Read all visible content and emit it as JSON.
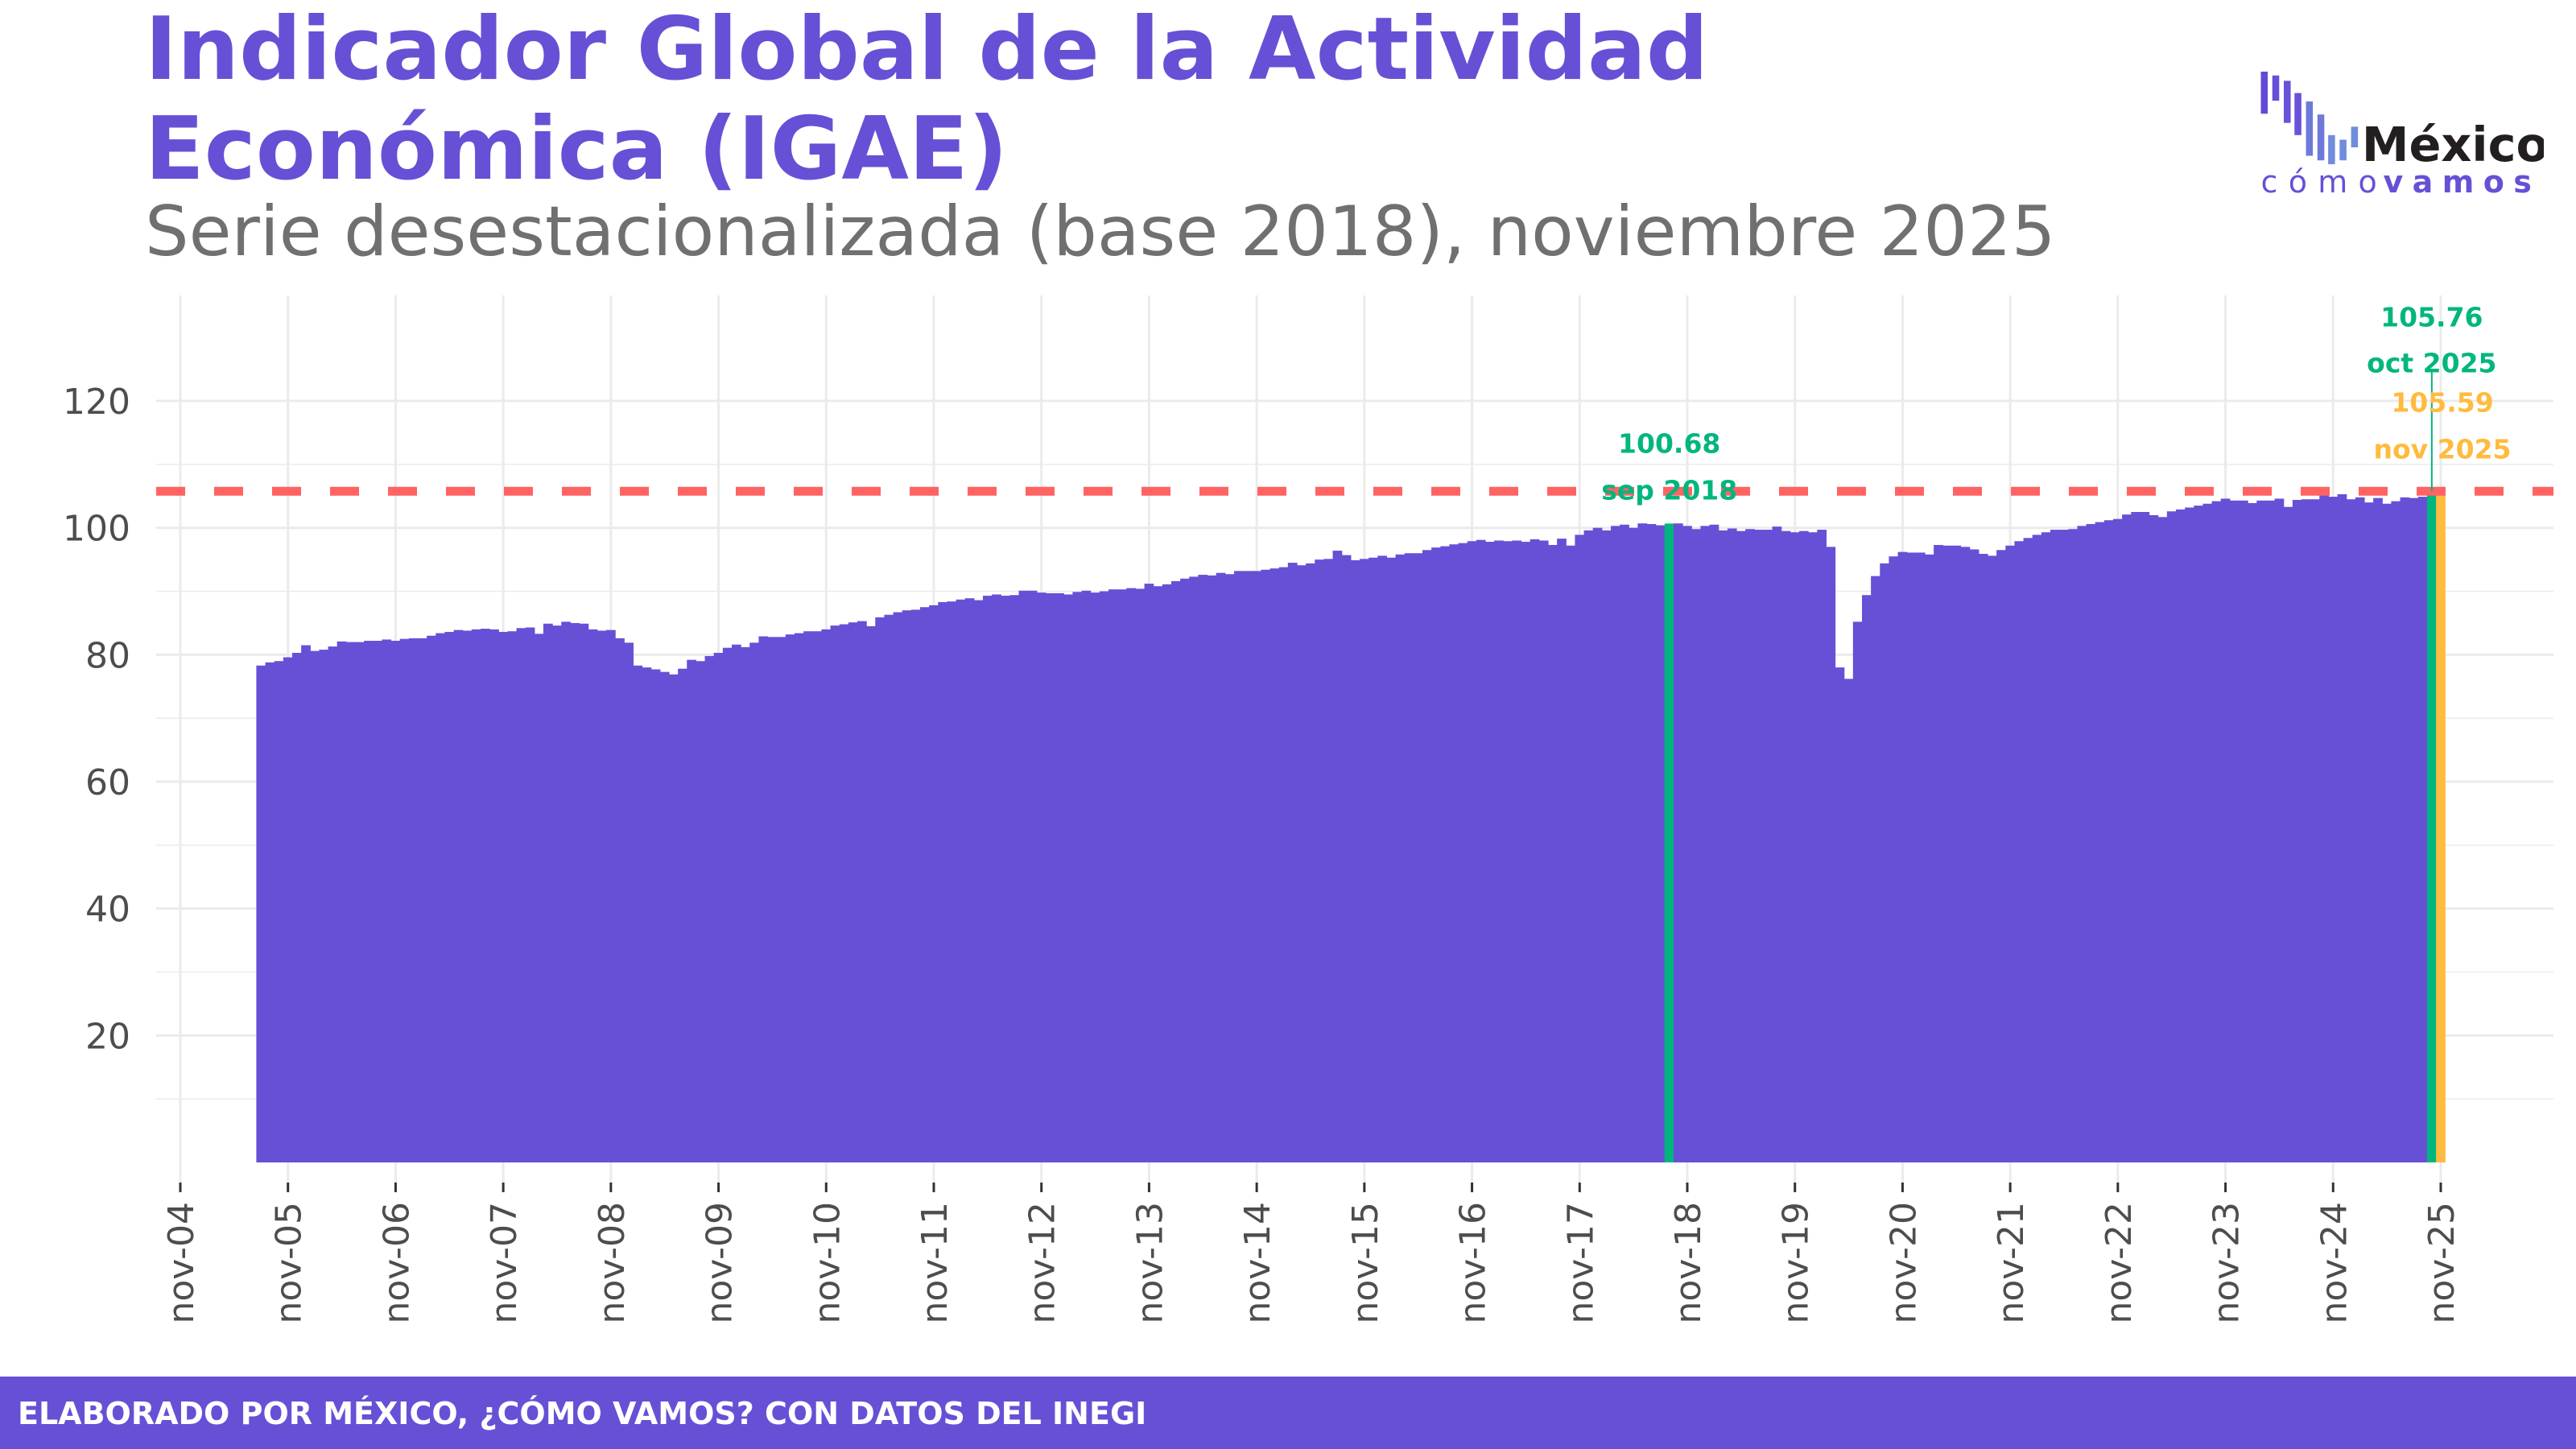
{
  "header": {
    "title_line1": "Indicador Global de la Actividad",
    "title_line2": "Económica (IGAE)",
    "subtitle": "Serie desestacionalizada (base 2018), noviembre 2025"
  },
  "logo": {
    "word1": "México",
    "word2a": "cómo",
    "word2b": "vamos"
  },
  "footer": {
    "text": "ELABORADO POR MÉXICO, ¿CÓMO VAMOS? CON DATOS DEL INEGI"
  },
  "colors": {
    "bars": "#6750D6",
    "highlight_sep2018": "#00B67E",
    "highlight_oct2025": "#00B67E",
    "highlight_nov2025": "#FFBB3F",
    "reference_line": "#FF6363",
    "grid": "#EBEBEB"
  },
  "chart_data": {
    "type": "bar",
    "title": "Indicador Global de la Actividad Económica (IGAE)",
    "subtitle": "Serie desestacionalizada (base 2018), noviembre 2025",
    "xlabel": "",
    "ylabel": "",
    "start": "2005-08",
    "end": "2025-11",
    "frequency": "monthly",
    "ylim": [
      0,
      135
    ],
    "yticks": [
      20,
      40,
      60,
      80,
      100,
      120
    ],
    "xticks": [
      "nov-04",
      "nov-05",
      "nov-06",
      "nov-07",
      "nov-08",
      "nov-09",
      "nov-10",
      "nov-11",
      "nov-12",
      "nov-13",
      "nov-14",
      "nov-15",
      "nov-16",
      "nov-17",
      "nov-18",
      "nov-19",
      "nov-20",
      "nov-21",
      "nov-22",
      "nov-23",
      "nov-24",
      "nov-25"
    ],
    "grid": true,
    "reference_line": {
      "value": 105.76,
      "style": "dashed"
    },
    "values": [
      78.3,
      78.8,
      79.0,
      79.6,
      80.3,
      81.5,
      80.6,
      80.8,
      81.3,
      82.1,
      82.0,
      82.0,
      82.2,
      82.2,
      82.4,
      82.2,
      82.5,
      82.6,
      82.6,
      83.0,
      83.4,
      83.6,
      83.9,
      83.8,
      84.0,
      84.1,
      84.0,
      83.6,
      83.7,
      84.2,
      84.3,
      83.3,
      84.9,
      84.6,
      85.2,
      85.0,
      84.9,
      84.0,
      83.8,
      83.9,
      82.6,
      81.9,
      78.3,
      78.0,
      77.7,
      77.3,
      76.9,
      77.8,
      79.2,
      79.0,
      79.8,
      80.3,
      81.1,
      81.6,
      81.2,
      81.9,
      82.9,
      82.8,
      82.8,
      83.2,
      83.4,
      83.7,
      83.7,
      84.0,
      84.6,
      84.8,
      85.1,
      85.3,
      84.5,
      85.9,
      86.3,
      86.7,
      87.0,
      87.1,
      87.5,
      87.8,
      88.3,
      88.4,
      88.7,
      88.9,
      88.6,
      89.3,
      89.5,
      89.3,
      89.4,
      90.1,
      90.1,
      89.8,
      89.7,
      89.7,
      89.5,
      89.9,
      90.1,
      89.8,
      90.0,
      90.3,
      90.3,
      90.5,
      90.4,
      91.2,
      90.8,
      91.1,
      91.6,
      92.0,
      92.3,
      92.6,
      92.5,
      92.9,
      92.7,
      93.2,
      93.2,
      93.2,
      93.4,
      93.6,
      93.8,
      94.5,
      94.1,
      94.4,
      95.0,
      95.1,
      96.4,
      95.7,
      94.9,
      95.1,
      95.3,
      95.6,
      95.3,
      95.8,
      96.0,
      96.0,
      96.5,
      96.9,
      97.1,
      97.4,
      97.6,
      97.9,
      98.1,
      97.8,
      98.0,
      97.9,
      98.0,
      97.8,
      98.2,
      98.0,
      97.3,
      98.3,
      97.2,
      98.9,
      99.6,
      100.0,
      99.6,
      100.3,
      100.5,
      100.0,
      100.7,
      100.6,
      100.4,
      100.68,
      100.7,
      100.3,
      99.8,
      100.3,
      100.5,
      99.6,
      99.9,
      99.5,
      99.8,
      99.7,
      99.7,
      100.2,
      99.5,
      99.3,
      99.5,
      99.3,
      99.7,
      97.0,
      78.0,
      76.2,
      85.2,
      89.4,
      92.4,
      94.4,
      95.5,
      96.2,
      96.1,
      96.1,
      95.8,
      97.3,
      97.2,
      97.2,
      97.0,
      96.6,
      95.9,
      95.6,
      96.5,
      97.2,
      97.9,
      98.4,
      98.9,
      99.3,
      99.7,
      99.7,
      99.8,
      100.3,
      100.6,
      100.9,
      101.2,
      101.4,
      102.1,
      102.5,
      102.5,
      102.0,
      101.7,
      102.6,
      102.9,
      103.2,
      103.5,
      103.8,
      104.2,
      104.6,
      104.3,
      104.3,
      103.9,
      104.3,
      104.3,
      104.6,
      103.3,
      104.4,
      104.5,
      104.5,
      105.5,
      104.9,
      105.3,
      104.5,
      104.8,
      104.0,
      104.7,
      103.8,
      104.2,
      104.8,
      104.7,
      104.9,
      105.76,
      105.59
    ],
    "annotations": [
      {
        "period": "2018-09",
        "value_label": "100.68",
        "date_label": "sep 2018",
        "color": "#00B67E"
      },
      {
        "period": "2025-10",
        "value_label": "105.76",
        "date_label": "oct 2025",
        "color": "#00B67E"
      },
      {
        "period": "2025-11",
        "value_label": "105.59",
        "date_label": "nov 2025",
        "color": "#FFBB3F"
      }
    ]
  }
}
